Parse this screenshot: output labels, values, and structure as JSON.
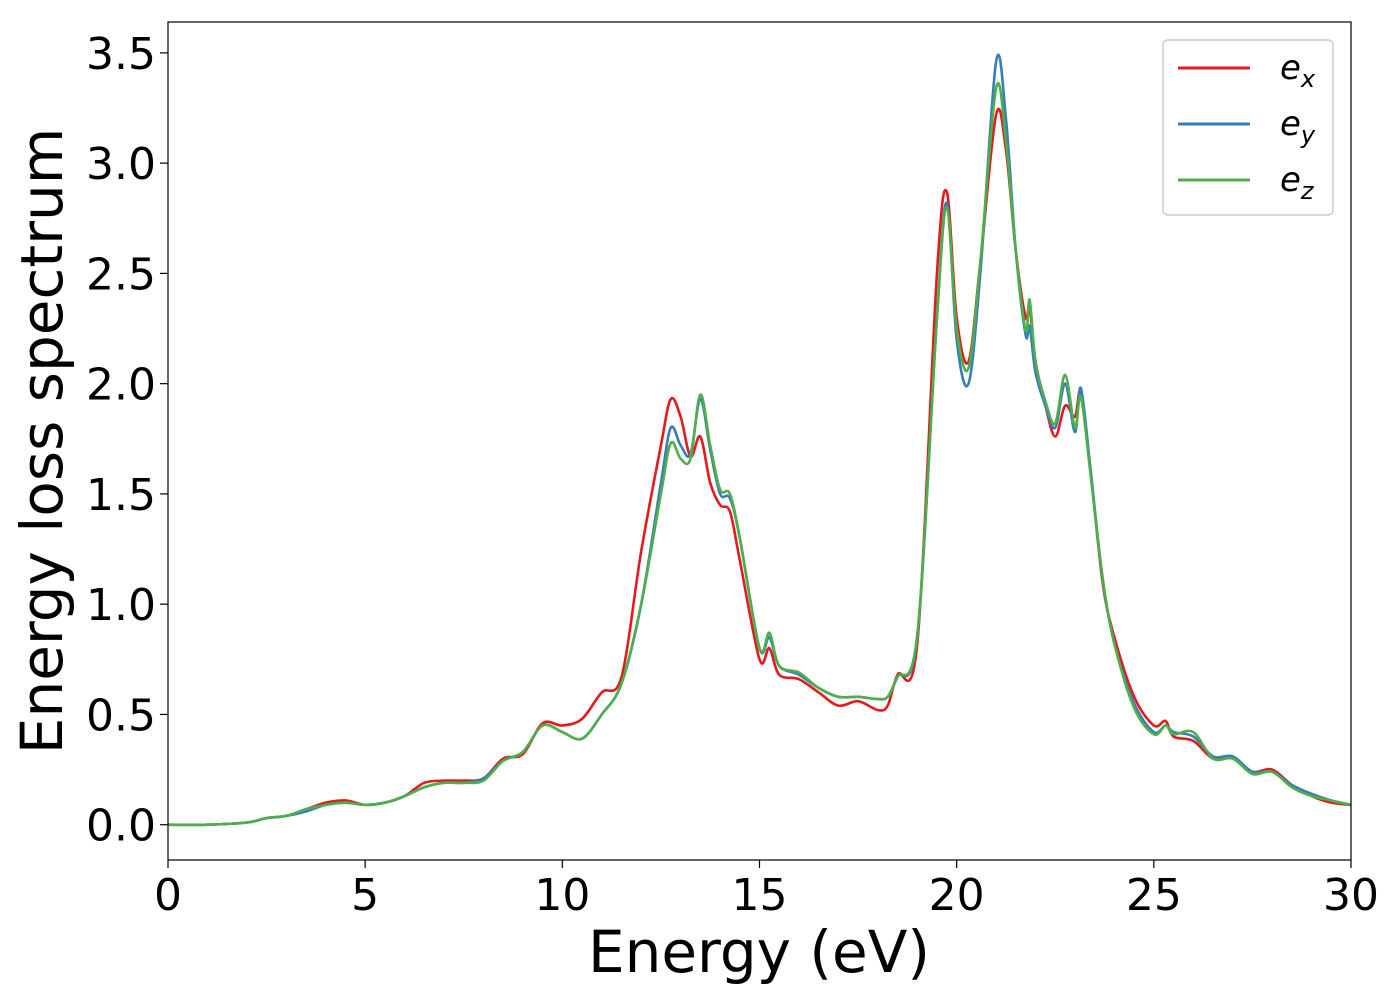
{
  "chart_data": {
    "type": "line",
    "title": "",
    "xlabel": "Energy (eV)",
    "ylabel": "Energy loss spectrum",
    "xlim": [
      0,
      30
    ],
    "ylim": [
      -0.16,
      3.64
    ],
    "xticks": [
      0,
      5,
      10,
      15,
      20,
      25,
      30
    ],
    "xtick_labels": [
      "0",
      "5",
      "10",
      "15",
      "20",
      "25",
      "30"
    ],
    "yticks": [
      0.0,
      0.5,
      1.0,
      1.5,
      2.0,
      2.5,
      3.0,
      3.5
    ],
    "ytick_labels": [
      "0.0",
      "0.5",
      "1.0",
      "1.5",
      "2.0",
      "2.5",
      "3.0",
      "3.5"
    ],
    "grid": false,
    "legend_position": "top-right",
    "series": [
      {
        "name": "e",
        "name_sub": "x",
        "color": "#e41a1c",
        "x": [
          0,
          1,
          2,
          2.5,
          3,
          3.5,
          4,
          4.5,
          5,
          5.5,
          6,
          6.5,
          7,
          7.5,
          8,
          8.5,
          9,
          9.5,
          10,
          10.5,
          11,
          11.5,
          12,
          12.5,
          12.75,
          13,
          13.25,
          13.5,
          13.75,
          14,
          14.25,
          14.5,
          15,
          15.25,
          15.5,
          16,
          16.5,
          17,
          17.5,
          18,
          18.25,
          18.5,
          19,
          19.5,
          19.75,
          20,
          20.3,
          20.6,
          21,
          21.25,
          21.5,
          21.75,
          21.85,
          22,
          22.25,
          22.5,
          22.75,
          23,
          23.15,
          23.4,
          23.7,
          24,
          24.5,
          25,
          25.3,
          25.5,
          26,
          26.5,
          27,
          27.5,
          28,
          28.5,
          29,
          29.5,
          30
        ],
        "y": [
          0,
          0,
          0.01,
          0.03,
          0.04,
          0.07,
          0.1,
          0.11,
          0.09,
          0.1,
          0.13,
          0.19,
          0.2,
          0.2,
          0.21,
          0.3,
          0.32,
          0.46,
          0.45,
          0.48,
          0.6,
          0.67,
          1.24,
          1.72,
          1.93,
          1.85,
          1.67,
          1.76,
          1.55,
          1.45,
          1.42,
          1.2,
          0.75,
          0.8,
          0.68,
          0.66,
          0.6,
          0.54,
          0.56,
          0.52,
          0.54,
          0.68,
          0.82,
          2.5,
          2.87,
          2.3,
          2.1,
          2.55,
          3.22,
          3.06,
          2.6,
          2.3,
          2.35,
          2.1,
          1.9,
          1.76,
          1.9,
          1.85,
          1.96,
          1.6,
          1.1,
          0.85,
          0.58,
          0.45,
          0.47,
          0.4,
          0.38,
          0.3,
          0.3,
          0.24,
          0.25,
          0.18,
          0.13,
          0.1,
          0.09
        ]
      },
      {
        "name": "e",
        "name_sub": "y",
        "color": "#377eb8",
        "x": [
          0,
          1,
          2,
          2.5,
          3,
          3.5,
          4,
          4.5,
          5,
          5.5,
          6,
          6.5,
          7,
          7.5,
          8,
          8.5,
          9,
          9.5,
          10,
          10.5,
          11,
          11.5,
          12,
          12.5,
          12.75,
          13,
          13.25,
          13.5,
          13.75,
          14,
          14.25,
          14.5,
          15,
          15.25,
          15.5,
          16,
          16.5,
          17,
          17.5,
          18,
          18.25,
          18.5,
          19,
          19.5,
          19.75,
          20,
          20.3,
          20.6,
          21,
          21.25,
          21.5,
          21.75,
          21.85,
          22,
          22.25,
          22.5,
          22.75,
          23,
          23.15,
          23.4,
          23.7,
          24,
          24.5,
          25,
          25.3,
          25.5,
          26,
          26.5,
          27,
          27.5,
          28,
          28.5,
          29,
          29.5,
          30
        ],
        "y": [
          0,
          0,
          0.01,
          0.03,
          0.04,
          0.06,
          0.09,
          0.1,
          0.09,
          0.1,
          0.13,
          0.17,
          0.19,
          0.19,
          0.21,
          0.29,
          0.33,
          0.45,
          0.42,
          0.39,
          0.5,
          0.64,
          1.0,
          1.55,
          1.8,
          1.72,
          1.68,
          1.93,
          1.7,
          1.5,
          1.48,
          1.3,
          0.8,
          0.85,
          0.72,
          0.68,
          0.62,
          0.58,
          0.58,
          0.57,
          0.58,
          0.67,
          0.85,
          2.3,
          2.82,
          2.2,
          2.0,
          2.5,
          3.46,
          3.2,
          2.6,
          2.22,
          2.26,
          2.05,
          1.9,
          1.8,
          2.0,
          1.78,
          1.98,
          1.6,
          1.12,
          0.82,
          0.55,
          0.42,
          0.45,
          0.42,
          0.4,
          0.31,
          0.31,
          0.24,
          0.24,
          0.18,
          0.14,
          0.11,
          0.09
        ]
      },
      {
        "name": "e",
        "name_sub": "z",
        "color": "#4daf4a",
        "x": [
          0,
          1,
          2,
          2.5,
          3,
          3.5,
          4,
          4.5,
          5,
          5.5,
          6,
          6.5,
          7,
          7.5,
          8,
          8.5,
          9,
          9.5,
          10,
          10.5,
          11,
          11.5,
          12,
          12.5,
          12.75,
          13,
          13.25,
          13.5,
          13.75,
          14,
          14.25,
          14.5,
          15,
          15.25,
          15.5,
          16,
          16.5,
          17,
          17.5,
          18,
          18.25,
          18.5,
          19,
          19.5,
          19.75,
          20,
          20.3,
          20.6,
          21,
          21.25,
          21.5,
          21.75,
          21.85,
          22,
          22.25,
          22.5,
          22.75,
          23,
          23.15,
          23.4,
          23.7,
          24,
          24.5,
          25,
          25.3,
          25.5,
          26,
          26.5,
          27,
          27.5,
          28,
          28.5,
          29,
          29.5,
          30
        ],
        "y": [
          0,
          0,
          0.01,
          0.03,
          0.04,
          0.07,
          0.09,
          0.1,
          0.09,
          0.1,
          0.13,
          0.17,
          0.19,
          0.19,
          0.2,
          0.29,
          0.33,
          0.45,
          0.42,
          0.39,
          0.5,
          0.64,
          1.0,
          1.5,
          1.73,
          1.66,
          1.66,
          1.95,
          1.72,
          1.52,
          1.5,
          1.3,
          0.8,
          0.87,
          0.72,
          0.69,
          0.62,
          0.58,
          0.58,
          0.57,
          0.58,
          0.67,
          0.86,
          2.3,
          2.8,
          2.25,
          2.07,
          2.55,
          3.34,
          3.1,
          2.6,
          2.24,
          2.38,
          2.1,
          1.92,
          1.82,
          2.04,
          1.8,
          1.94,
          1.58,
          1.12,
          0.82,
          0.53,
          0.41,
          0.45,
          0.41,
          0.42,
          0.3,
          0.3,
          0.23,
          0.24,
          0.17,
          0.13,
          0.11,
          0.09
        ]
      }
    ]
  }
}
